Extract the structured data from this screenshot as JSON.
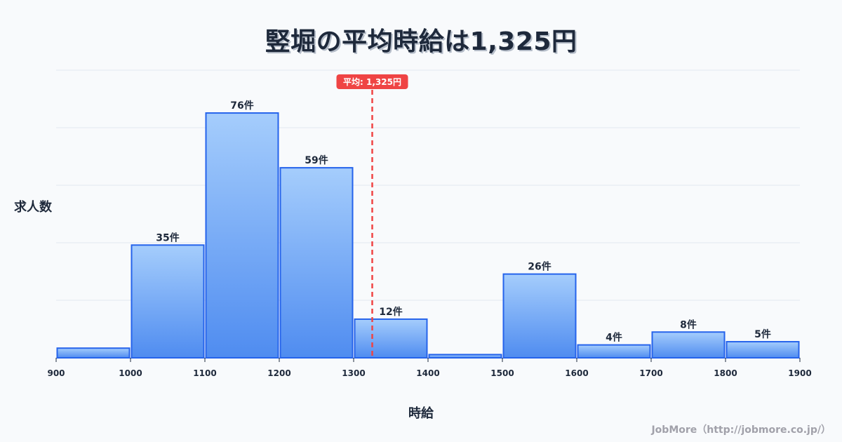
{
  "title": "竪堀の平均時給は1,325円",
  "footer": "JobMore（http://jobmore.co.jp/）",
  "colors": {
    "bar_top": "#a5cdfc",
    "bar_bottom": "#4f8cf0",
    "bar_border": "#2563eb",
    "avg_line": "#ef4444",
    "grid": "#e2e8f0",
    "text": "#1e293b",
    "background": "#f8fafc"
  },
  "chart_data": {
    "type": "bar",
    "title": "竪堀の平均時給は1,325円",
    "xlabel": "時給",
    "ylabel": "求人数",
    "x_ticks": [
      "900",
      "1000",
      "1100",
      "1200",
      "1300",
      "1400",
      "1500",
      "1600",
      "1700",
      "1800",
      "1900"
    ],
    "bins": [
      {
        "from": 900,
        "to": 1000,
        "value": 3,
        "label": ""
      },
      {
        "from": 1000,
        "to": 1100,
        "value": 35,
        "label": "35件"
      },
      {
        "from": 1100,
        "to": 1200,
        "value": 76,
        "label": "76件"
      },
      {
        "from": 1200,
        "to": 1300,
        "value": 59,
        "label": "59件"
      },
      {
        "from": 1300,
        "to": 1400,
        "value": 12,
        "label": "12件"
      },
      {
        "from": 1400,
        "to": 1500,
        "value": 1,
        "label": ""
      },
      {
        "from": 1500,
        "to": 1600,
        "value": 26,
        "label": "26件"
      },
      {
        "from": 1600,
        "to": 1700,
        "value": 4,
        "label": "4件"
      },
      {
        "from": 1700,
        "to": 1800,
        "value": 8,
        "label": "8件"
      },
      {
        "from": 1800,
        "to": 1900,
        "value": 5,
        "label": "5件"
      }
    ],
    "categories": [
      "900-1000",
      "1000-1100",
      "1100-1200",
      "1200-1300",
      "1300-1400",
      "1400-1500",
      "1500-1600",
      "1600-1700",
      "1700-1800",
      "1800-1900"
    ],
    "values": [
      3,
      35,
      76,
      59,
      12,
      1,
      26,
      4,
      8,
      5
    ],
    "xlim": [
      900,
      1900
    ],
    "ylim": [
      0,
      89.3
    ],
    "grid": true,
    "gridlines": 5,
    "average": {
      "value": 1325,
      "label": "平均: 1,325円"
    }
  }
}
